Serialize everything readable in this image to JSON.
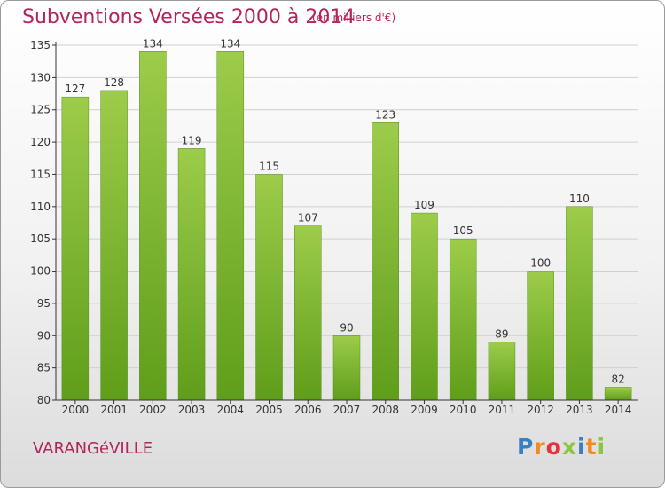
{
  "header": {
    "title": "Subventions Versées 2000 à 2014",
    "subtitle": "(en milliers d'€)"
  },
  "footer": {
    "commune": "VARANGéVILLE",
    "logo_text": "Proxiti",
    "logo_colors": [
      "#3a7fc1",
      "#f28a1e",
      "#e5323b",
      "#8cc63f",
      "#3a7fc1",
      "#f28a1e",
      "#8cc63f"
    ]
  },
  "colors": {
    "bar_light": "#9ccc4a",
    "bar_dark": "#5f9e1a",
    "bar_edge": "#5a8f1c",
    "axis": "#333333",
    "grid": "#d0d0d0",
    "accent": "#b4235a"
  },
  "chart_data": {
    "type": "bar",
    "title": "Subventions Versées 2000 à 2014",
    "xlabel": "",
    "ylabel": "",
    "categories": [
      "2000",
      "2001",
      "2002",
      "2003",
      "2004",
      "2005",
      "2006",
      "2007",
      "2008",
      "2009",
      "2010",
      "2011",
      "2012",
      "2013",
      "2014"
    ],
    "values": [
      127,
      128,
      134,
      119,
      134,
      115,
      107,
      90,
      123,
      109,
      105,
      89,
      100,
      110,
      82
    ],
    "ylim": [
      80,
      135
    ],
    "yticks": [
      80,
      85,
      90,
      95,
      100,
      105,
      110,
      115,
      120,
      125,
      130,
      135
    ],
    "grid": true,
    "data_labels": true
  }
}
